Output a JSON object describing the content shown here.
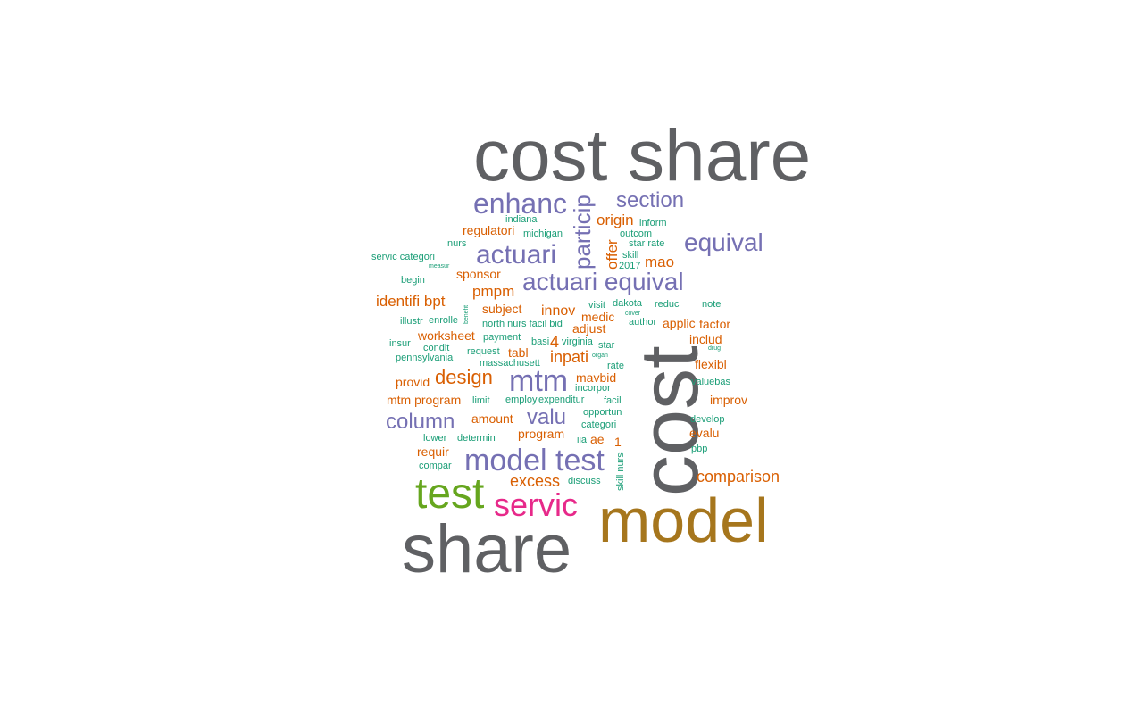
{
  "palette": {
    "grey": "#5f6063",
    "olive": "#a6761d",
    "green": "#66a61e",
    "magenta": "#e7298a",
    "purple": "#7570b3",
    "orange": "#d95f02",
    "teal": "#1b9e77"
  },
  "words": [
    {
      "text": "cost share",
      "color": "grey",
      "orientation": "horizontal"
    },
    {
      "text": "cost",
      "color": "grey",
      "orientation": "vertical"
    },
    {
      "text": "model",
      "color": "olive",
      "orientation": "horizontal"
    },
    {
      "text": "share",
      "color": "grey",
      "orientation": "horizontal"
    },
    {
      "text": "test",
      "color": "green",
      "orientation": "horizontal"
    },
    {
      "text": "servic",
      "color": "magenta",
      "orientation": "horizontal"
    },
    {
      "text": "model test",
      "color": "purple",
      "orientation": "horizontal"
    },
    {
      "text": "mtm",
      "color": "purple",
      "orientation": "horizontal"
    },
    {
      "text": "enhanc",
      "color": "purple",
      "orientation": "horizontal"
    },
    {
      "text": "actuari",
      "color": "purple",
      "orientation": "horizontal"
    },
    {
      "text": "actuari equival",
      "color": "purple",
      "orientation": "horizontal"
    },
    {
      "text": "equival",
      "color": "purple",
      "orientation": "horizontal"
    },
    {
      "text": "section",
      "color": "purple",
      "orientation": "horizontal"
    },
    {
      "text": "particip",
      "color": "purple",
      "orientation": "vertical"
    },
    {
      "text": "column",
      "color": "purple",
      "orientation": "horizontal"
    },
    {
      "text": "valu",
      "color": "purple",
      "orientation": "horizontal"
    },
    {
      "text": "design",
      "color": "orange",
      "orientation": "horizontal"
    },
    {
      "text": "comparison",
      "color": "orange",
      "orientation": "horizontal"
    },
    {
      "text": "excess",
      "color": "orange",
      "orientation": "horizontal"
    },
    {
      "text": "origin",
      "color": "orange",
      "orientation": "horizontal"
    },
    {
      "text": "offer",
      "color": "orange",
      "orientation": "vertical"
    },
    {
      "text": "mao",
      "color": "orange",
      "orientation": "horizontal"
    },
    {
      "text": "regulatori",
      "color": "orange",
      "orientation": "horizontal"
    },
    {
      "text": "sponsor",
      "color": "orange",
      "orientation": "horizontal"
    },
    {
      "text": "identifi bpt",
      "color": "orange",
      "orientation": "horizontal"
    },
    {
      "text": "pmpm",
      "color": "orange",
      "orientation": "horizontal"
    },
    {
      "text": "subject",
      "color": "orange",
      "orientation": "horizontal"
    },
    {
      "text": "innov",
      "color": "orange",
      "orientation": "horizontal"
    },
    {
      "text": "medic",
      "color": "orange",
      "orientation": "horizontal"
    },
    {
      "text": "adjust",
      "color": "orange",
      "orientation": "horizontal"
    },
    {
      "text": "applic",
      "color": "orange",
      "orientation": "horizontal"
    },
    {
      "text": "factor",
      "color": "orange",
      "orientation": "horizontal"
    },
    {
      "text": "includ",
      "color": "orange",
      "orientation": "horizontal"
    },
    {
      "text": "worksheet",
      "color": "orange",
      "orientation": "horizontal"
    },
    {
      "text": "tabl",
      "color": "orange",
      "orientation": "horizontal"
    },
    {
      "text": "4",
      "color": "orange",
      "orientation": "horizontal"
    },
    {
      "text": "inpati",
      "color": "orange",
      "orientation": "horizontal"
    },
    {
      "text": "flexibl",
      "color": "orange",
      "orientation": "horizontal"
    },
    {
      "text": "provid",
      "color": "orange",
      "orientation": "horizontal"
    },
    {
      "text": "mavbid",
      "color": "orange",
      "orientation": "horizontal"
    },
    {
      "text": "mtm program",
      "color": "orange",
      "orientation": "horizontal"
    },
    {
      "text": "improv",
      "color": "orange",
      "orientation": "horizontal"
    },
    {
      "text": "amount",
      "color": "orange",
      "orientation": "horizontal"
    },
    {
      "text": "program",
      "color": "orange",
      "orientation": "horizontal"
    },
    {
      "text": "ae",
      "color": "orange",
      "orientation": "horizontal"
    },
    {
      "text": "evalu",
      "color": "orange",
      "orientation": "horizontal"
    },
    {
      "text": "1",
      "color": "orange",
      "orientation": "horizontal"
    },
    {
      "text": "requir",
      "color": "orange",
      "orientation": "horizontal"
    },
    {
      "text": "indiana",
      "color": "teal",
      "orientation": "horizontal"
    },
    {
      "text": "michigan",
      "color": "teal",
      "orientation": "horizontal"
    },
    {
      "text": "inform",
      "color": "teal",
      "orientation": "horizontal"
    },
    {
      "text": "outcom",
      "color": "teal",
      "orientation": "horizontal"
    },
    {
      "text": "star rate",
      "color": "teal",
      "orientation": "horizontal"
    },
    {
      "text": "skill",
      "color": "teal",
      "orientation": "horizontal"
    },
    {
      "text": "2017",
      "color": "teal",
      "orientation": "horizontal"
    },
    {
      "text": "nurs",
      "color": "teal",
      "orientation": "horizontal"
    },
    {
      "text": "servic categori",
      "color": "teal",
      "orientation": "horizontal"
    },
    {
      "text": "measur",
      "color": "teal",
      "orientation": "horizontal"
    },
    {
      "text": "begin",
      "color": "teal",
      "orientation": "horizontal"
    },
    {
      "text": "benefit",
      "color": "teal",
      "orientation": "vertical"
    },
    {
      "text": "illustr",
      "color": "teal",
      "orientation": "horizontal"
    },
    {
      "text": "enrolle",
      "color": "teal",
      "orientation": "horizontal"
    },
    {
      "text": "north nurs facil bid",
      "color": "teal",
      "orientation": "horizontal"
    },
    {
      "text": "visit",
      "color": "teal",
      "orientation": "horizontal"
    },
    {
      "text": "dakota",
      "color": "teal",
      "orientation": "horizontal"
    },
    {
      "text": "reduc",
      "color": "teal",
      "orientation": "horizontal"
    },
    {
      "text": "note",
      "color": "teal",
      "orientation": "horizontal"
    },
    {
      "text": "cover",
      "color": "teal",
      "orientation": "horizontal"
    },
    {
      "text": "author",
      "color": "teal",
      "orientation": "horizontal"
    },
    {
      "text": "insur",
      "color": "teal",
      "orientation": "horizontal"
    },
    {
      "text": "condit",
      "color": "teal",
      "orientation": "horizontal"
    },
    {
      "text": "payment",
      "color": "teal",
      "orientation": "horizontal"
    },
    {
      "text": "basi",
      "color": "teal",
      "orientation": "horizontal"
    },
    {
      "text": "virginia",
      "color": "teal",
      "orientation": "horizontal"
    },
    {
      "text": "star",
      "color": "teal",
      "orientation": "horizontal"
    },
    {
      "text": "drug",
      "color": "teal",
      "orientation": "horizontal"
    },
    {
      "text": "pennsylvania",
      "color": "teal",
      "orientation": "horizontal"
    },
    {
      "text": "request",
      "color": "teal",
      "orientation": "horizontal"
    },
    {
      "text": "organ",
      "color": "teal",
      "orientation": "horizontal"
    },
    {
      "text": "massachusett",
      "color": "teal",
      "orientation": "horizontal"
    },
    {
      "text": "rate",
      "color": "teal",
      "orientation": "horizontal"
    },
    {
      "text": "incorpor",
      "color": "teal",
      "orientation": "horizontal"
    },
    {
      "text": "valuebas",
      "color": "teal",
      "orientation": "horizontal"
    },
    {
      "text": "employ",
      "color": "teal",
      "orientation": "horizontal"
    },
    {
      "text": "expenditur",
      "color": "teal",
      "orientation": "horizontal"
    },
    {
      "text": "limit",
      "color": "teal",
      "orientation": "horizontal"
    },
    {
      "text": "facil",
      "color": "teal",
      "orientation": "horizontal"
    },
    {
      "text": "opportun",
      "color": "teal",
      "orientation": "horizontal"
    },
    {
      "text": "develop",
      "color": "teal",
      "orientation": "horizontal"
    },
    {
      "text": "categori",
      "color": "teal",
      "orientation": "horizontal"
    },
    {
      "text": "lower",
      "color": "teal",
      "orientation": "horizontal"
    },
    {
      "text": "determin",
      "color": "teal",
      "orientation": "horizontal"
    },
    {
      "text": "iia",
      "color": "teal",
      "orientation": "horizontal"
    },
    {
      "text": "pbp",
      "color": "teal",
      "orientation": "horizontal"
    },
    {
      "text": "compar",
      "color": "teal",
      "orientation": "horizontal"
    },
    {
      "text": "skill nurs",
      "color": "teal",
      "orientation": "vertical"
    },
    {
      "text": "discuss",
      "color": "teal",
      "orientation": "horizontal"
    }
  ]
}
